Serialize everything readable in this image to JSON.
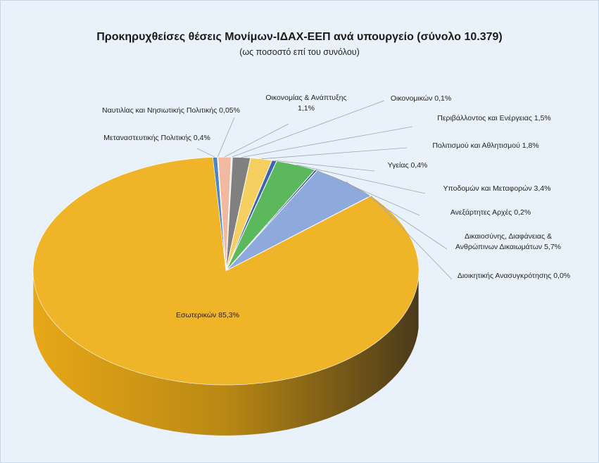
{
  "chart_data": {
    "type": "pie",
    "title": "Προκηρυχθείσες θέσεις Μονίμων-ΙΔΑΧ-ΕΕΠ ανά υπουργείο (σύνολο 10.379)",
    "subtitle": "(ως ποσοστό επί του συνόλου)",
    "slices": [
      {
        "label": "Εσωτερικών",
        "value": 85.3,
        "text": "Εσωτερικών  85,3%",
        "color": "#f0b429"
      },
      {
        "label": "Μεταναστευτικής Πολιτικής",
        "value": 0.4,
        "text": "Μεταναστευτικής Πολιτικής 0,4%",
        "color": "#4a86c8"
      },
      {
        "label": "Ναυτιλίας και Νησιωτικής Πολιτικής",
        "value": 0.05,
        "text": "Ναυτιλίας και Νησιωτικής Πολιτικής 0,05%",
        "color": "#a9c4e6"
      },
      {
        "label": "Οικονομίας & Ανάπτυξης",
        "value": 1.1,
        "text": [
          "Οικονομίας & Ανάπτυξης",
          "1,1%"
        ],
        "color": "#f2b8a0"
      },
      {
        "label": "Οικονομικών",
        "value": 0.1,
        "text": "Οικονομικών 0,1%",
        "color": "#d8d8d8"
      },
      {
        "label": "Περιβάλλοντος και Ενέργειας",
        "value": 1.5,
        "text": "Περιβάλλοντος και Ενέργειας  1,5%",
        "color": "#808080"
      },
      {
        "label": "Πολιτισμού και Αθλητισμού",
        "value": 1.8,
        "text": "Πολιτισμού και Αθλητισμού 1,8%",
        "color": "#f5d060"
      },
      {
        "label": "Υγείας",
        "value": 0.4,
        "text": "Υγείας 0,4%",
        "color": "#3c64b0"
      },
      {
        "label": "Υποδομών και Μεταφορών",
        "value": 3.4,
        "text": "Υποδομών και Μεταφορών 3,4%",
        "color": "#5cb85c"
      },
      {
        "label": "Ανεξάρτητες Αρχές",
        "value": 0.2,
        "text": "Ανεξάρτητες Αρχές 0,2%",
        "color": "#2f5597"
      },
      {
        "label": "Δικαιοσύνης, Διαφάνειας & Ανθρώπινων Δικαιωμάτων",
        "value": 5.7,
        "text": [
          "Δικαιοσύνης, Διαφάνειας &",
          "Ανθρώπινων  Δικαιωμάτων 5,7%"
        ],
        "color": "#8ea9db"
      },
      {
        "label": "Διοικητικής Ανασυγκρότησης",
        "value": 0.0,
        "text": "Διοικητικής Ανασυγκρότησης 0,0%",
        "color": "#ffffff"
      }
    ]
  }
}
